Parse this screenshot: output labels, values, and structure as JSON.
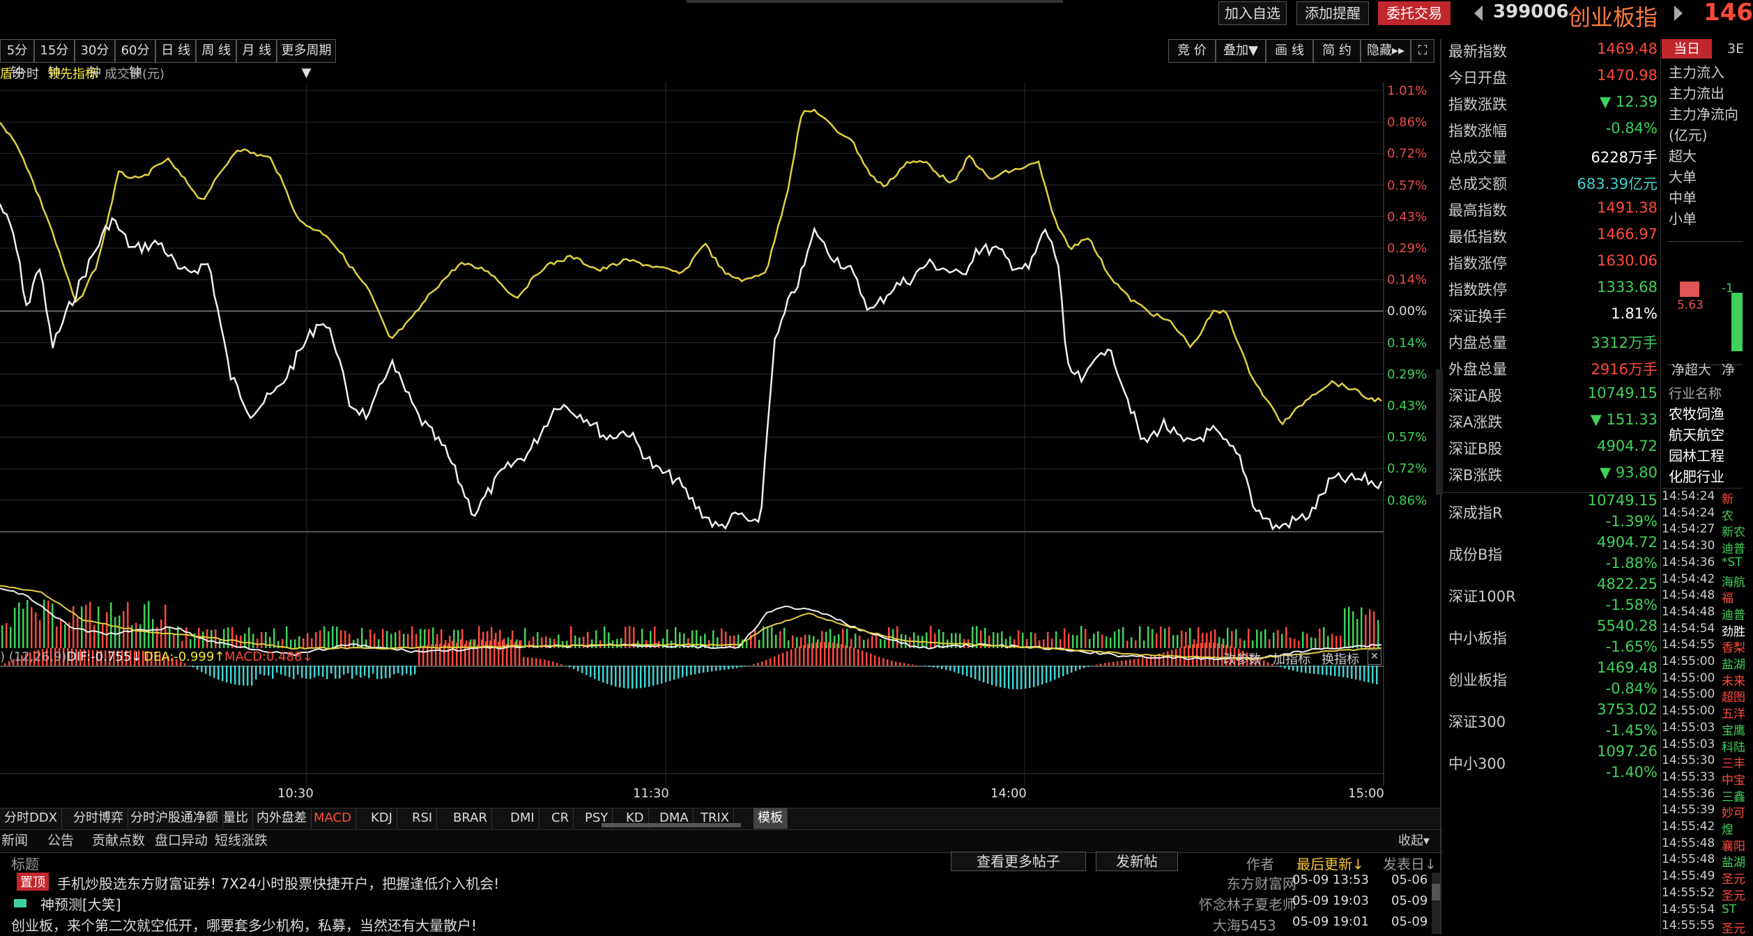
{
  "header": {
    "add_watchlist": "加入自选",
    "add_alert": "添加提醒",
    "trade": "委托交易",
    "code": "399006",
    "name": "创业板指",
    "price_partial": "146"
  },
  "periods": [
    "5分钟",
    "15分钟",
    "30分钟",
    "60分钟",
    "日 线",
    "周 线",
    "月 线",
    "更多周期▼"
  ],
  "chart_tools": [
    "竞 价",
    "叠加▼",
    "画 线",
    "简 约",
    "隐藏▸▸"
  ],
  "subheader": {
    "left": "盾",
    "timeshare": "分时",
    "leading": "领先指标",
    "volume_label": "成交额(元)"
  },
  "pct_axis": [
    {
      "label": "1.01%",
      "color": "red"
    },
    {
      "label": "0.86%",
      "color": "red"
    },
    {
      "label": "0.72%",
      "color": "red"
    },
    {
      "label": "0.57%",
      "color": "red"
    },
    {
      "label": "0.43%",
      "color": "red"
    },
    {
      "label": "0.29%",
      "color": "red"
    },
    {
      "label": "0.14%",
      "color": "red"
    },
    {
      "label": "0.00%",
      "color": "white"
    },
    {
      "label": "0.14%",
      "color": "green"
    },
    {
      "label": "0.29%",
      "color": "green"
    },
    {
      "label": "0.43%",
      "color": "green"
    },
    {
      "label": "0.57%",
      "color": "green"
    },
    {
      "label": "0.72%",
      "color": "green"
    },
    {
      "label": "0.86%",
      "color": "green"
    }
  ],
  "time_axis": [
    "10:30",
    "11:30",
    "14:00",
    "15:00"
  ],
  "macd": {
    "params": ") (12,26,9)",
    "dif": "DIF:-0.755↓",
    "dea": "DEA:-0.999↑",
    "macd": "MACD:0.488↓",
    "btn_params": "改参数",
    "btn_add": "加指标",
    "btn_switch": "换指标"
  },
  "indicator_tabs": [
    "分时DDX",
    "分时博弈",
    "分时沪股通净额",
    "量比",
    "内外盘差",
    "MACD",
    "KDJ",
    "RSI",
    "BRAR",
    "DMI",
    "CR",
    "PSY",
    "KD",
    "DMA",
    "TRIX",
    "模板"
  ],
  "news_tabs": [
    "新闻",
    "公告",
    "贡献点数",
    "盘口异动",
    "短线涨跌"
  ],
  "collapse": "收起▾",
  "forum": {
    "col_title": "标题",
    "more_posts": "查看更多帖子",
    "post_btn": "发新帖",
    "col_author": "作者",
    "col_updated": "最后更新↓",
    "col_date": "发表日↓",
    "posts": [
      {
        "tag": "置顶",
        "title": "手机炒股选东方财富证券! 7X24小时股票快捷开户，把握逢低介入机会!",
        "author": "东方财富网",
        "updated": "05-09 13:53",
        "date": "05-06"
      },
      {
        "tag": "",
        "title": "神预测[大笑]",
        "author": "怀念林子夏老师",
        "updated": "05-09 19:03",
        "date": "05-09"
      },
      {
        "tag": "",
        "title": "创业板，来个第二次就空低开，哪要套多少机构，私募，当然还有大量散户!",
        "author": "大海5453",
        "updated": "05-09 19:01",
        "date": "05-09"
      }
    ]
  },
  "quote": [
    {
      "label": "最新指数",
      "value": "1469.48",
      "color": "red"
    },
    {
      "label": "今日开盘",
      "value": "1470.98",
      "color": "red"
    },
    {
      "label": "指数涨跌",
      "value": "▼ 12.39",
      "color": "green"
    },
    {
      "label": "指数涨幅",
      "value": "-0.84%",
      "color": "green"
    },
    {
      "label": "总成交量",
      "value": "6228万手",
      "color": "white"
    },
    {
      "label": "总成交额",
      "value": "683.39亿元",
      "color": "cyan"
    },
    {
      "label": "最高指数",
      "value": "1491.38",
      "color": "red"
    },
    {
      "label": "最低指数",
      "value": "1466.97",
      "color": "red"
    },
    {
      "label": "指数涨停",
      "value": "1630.06",
      "color": "red"
    },
    {
      "label": "指数跌停",
      "value": "1333.68",
      "color": "green"
    },
    {
      "label": "深证换手",
      "value": "1.81%",
      "color": "white"
    },
    {
      "label": "内盘总量",
      "value": "3312万手",
      "color": "green"
    },
    {
      "label": "外盘总量",
      "value": "2916万手",
      "color": "red"
    },
    {
      "label": "深证A股",
      "value": "10749.15",
      "color": "green"
    },
    {
      "label": "深A涨跌",
      "value": "▼ 151.33",
      "color": "green"
    },
    {
      "label": "深证B股",
      "value": "4904.72",
      "color": "green"
    },
    {
      "label": "深B涨跌",
      "value": "▼ 93.80",
      "color": "green"
    }
  ],
  "indices": [
    {
      "label": "深成指R",
      "value": "10749.15",
      "change": "-1.39%"
    },
    {
      "label": "成份B指",
      "value": "4904.72",
      "change": "-1.88%"
    },
    {
      "label": "深证100R",
      "value": "4822.25",
      "change": "-1.58%"
    },
    {
      "label": "中小板指",
      "value": "5540.28",
      "change": "-1.65%"
    },
    {
      "label": "创业板指",
      "value": "1469.48",
      "change": "-0.84%"
    },
    {
      "label": "深证300",
      "value": "3753.02",
      "change": "-1.45%"
    },
    {
      "label": "中小300",
      "value": "1097.26",
      "change": "-1.40%"
    }
  ],
  "flow_panel": {
    "tab_today": "当日",
    "tab_3": "3E",
    "rows": [
      "主力流入",
      "主力流出",
      "主力净流向",
      "(亿元)",
      "超大",
      "大单",
      "中单",
      "小单"
    ],
    "bar_value": "5.63",
    "bar_value2": "-1",
    "bottom_labels": [
      "净超大",
      "净"
    ],
    "industry_header": "行业名称",
    "industries": [
      "农牧饲渔",
      "航天航空",
      "园林工程",
      "化肥行业"
    ]
  },
  "ticks": [
    {
      "time": "14:54:24",
      "name": "新",
      "color": "red"
    },
    {
      "time": "14:54:24",
      "name": "农",
      "color": "green"
    },
    {
      "time": "14:54:27",
      "name": "新农",
      "color": "green"
    },
    {
      "time": "14:54:30",
      "name": "迪普",
      "color": "green"
    },
    {
      "time": "14:54:36",
      "name": "*ST",
      "color": "green"
    },
    {
      "time": "14:54:42",
      "name": "海航",
      "color": "green"
    },
    {
      "time": "14:54:48",
      "name": "福",
      "color": "red"
    },
    {
      "time": "14:54:48",
      "name": "迪普",
      "color": "green"
    },
    {
      "time": "14:54:54",
      "name": "劲胜",
      "color": "white"
    },
    {
      "time": "14:54:55",
      "name": "香梨",
      "color": "red"
    },
    {
      "time": "14:55:00",
      "name": "盐湖",
      "color": "green"
    },
    {
      "time": "14:55:00",
      "name": "未来",
      "color": "red"
    },
    {
      "time": "14:55:00",
      "name": "超图",
      "color": "red"
    },
    {
      "time": "14:55:00",
      "name": "五洋",
      "color": "red"
    },
    {
      "time": "14:55:03",
      "name": "宝鹰",
      "color": "green"
    },
    {
      "time": "14:55:03",
      "name": "科陆",
      "color": "green"
    },
    {
      "time": "14:55:30",
      "name": "三丰",
      "color": "red"
    },
    {
      "time": "14:55:33",
      "name": "中宝",
      "color": "red"
    },
    {
      "time": "14:55:36",
      "name": "三鑫",
      "color": "green"
    },
    {
      "time": "14:55:39",
      "name": "妙可",
      "color": "red"
    },
    {
      "time": "14:55:42",
      "name": "煌",
      "color": "green"
    },
    {
      "time": "14:55:48",
      "name": "襄阳",
      "color": "red"
    },
    {
      "time": "14:55:48",
      "name": "盐湖",
      "color": "green"
    },
    {
      "time": "14:55:49",
      "name": "圣元",
      "color": "red"
    },
    {
      "time": "14:55:52",
      "name": "圣元",
      "color": "red"
    },
    {
      "time": "14:55:54",
      "name": "ST",
      "color": "green"
    },
    {
      "time": "14:55:55",
      "name": "圣元",
      "color": "red"
    }
  ],
  "colors": {
    "up": "#ff4a3a",
    "down": "#3fd25a",
    "index_line": "#f0f0f0",
    "lead_line": "#e0d040",
    "accent": "#c0272d"
  }
}
